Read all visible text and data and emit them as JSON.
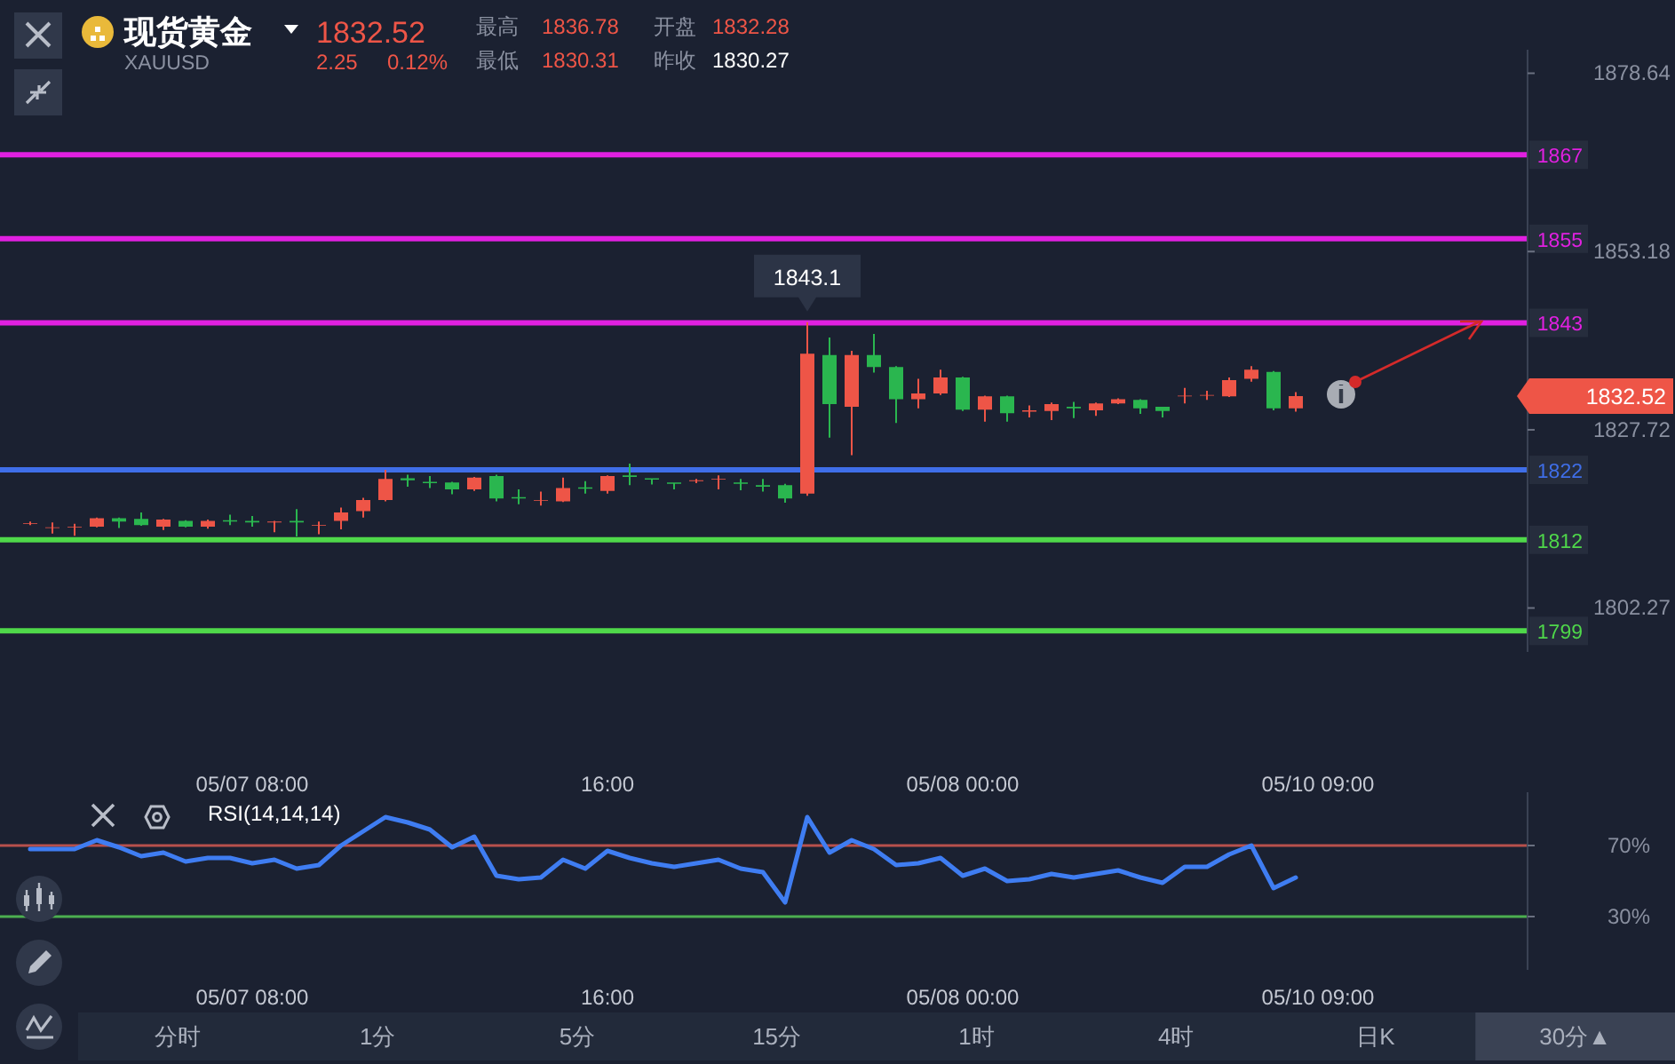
{
  "chart_data": [
    {
      "type": "candlestick",
      "title": "现货黄金",
      "subtitle": "XAUUSD",
      "categories": [
        null,
        null,
        null,
        null,
        null,
        null,
        null,
        null,
        null,
        null,
        "05/07 08:00",
        null,
        null,
        null,
        null,
        null,
        null,
        null,
        null,
        null,
        null,
        null,
        null,
        null,
        null,
        null,
        "16:00",
        null,
        null,
        null,
        null,
        null,
        null,
        null,
        null,
        null,
        null,
        null,
        null,
        null,
        null,
        null,
        "05/08 00:00",
        null,
        null,
        null,
        null,
        null,
        null,
        null,
        null,
        null,
        null,
        null,
        null,
        null,
        null,
        null,
        "05/10 09:00",
        null,
        null,
        null,
        null,
        null,
        null,
        null,
        null,
        null
      ],
      "ohlc": [
        [
          1814.3,
          1814.6,
          1814.1,
          1814.4
        ],
        [
          1813.7,
          1814.5,
          1812.9,
          1813.8
        ],
        [
          1813.8,
          1814.3,
          1812.6,
          1813.9
        ],
        [
          1813.9,
          1815.2,
          1813.8,
          1815.1
        ],
        [
          1815.1,
          1815.2,
          1813.7,
          1814.6
        ],
        [
          1815.0,
          1815.9,
          1814.0,
          1814.1
        ],
        [
          1813.9,
          1815.0,
          1813.4,
          1814.9
        ],
        [
          1814.7,
          1814.8,
          1813.8,
          1813.9
        ],
        [
          1813.9,
          1814.9,
          1813.6,
          1814.7
        ],
        [
          1814.8,
          1815.6,
          1814.1,
          1814.6
        ],
        [
          1814.7,
          1815.4,
          1813.9,
          1814.5
        ],
        [
          1814.5,
          1814.7,
          1813.1,
          1814.6
        ],
        [
          1814.7,
          1816.4,
          1812.5,
          1814.5
        ],
        [
          1814.0,
          1814.6,
          1812.8,
          1814.1
        ],
        [
          1814.7,
          1816.6,
          1813.5,
          1815.9
        ],
        [
          1816.1,
          1818.0,
          1815.2,
          1817.7
        ],
        [
          1817.7,
          1822.0,
          1817.5,
          1820.7
        ],
        [
          1820.8,
          1821.3,
          1819.6,
          1820.5
        ],
        [
          1820.3,
          1821.1,
          1819.4,
          1820.1
        ],
        [
          1820.2,
          1820.3,
          1818.5,
          1819.2
        ],
        [
          1819.2,
          1821.0,
          1819.0,
          1820.9
        ],
        [
          1821.1,
          1821.3,
          1817.5,
          1817.9
        ],
        [
          1818.1,
          1819.2,
          1817.1,
          1817.9
        ],
        [
          1817.6,
          1818.9,
          1816.9,
          1817.7
        ],
        [
          1817.5,
          1820.9,
          1817.4,
          1819.4
        ],
        [
          1819.5,
          1820.4,
          1818.6,
          1819.3
        ],
        [
          1819.0,
          1821.2,
          1818.6,
          1821.1
        ],
        [
          1821.2,
          1822.9,
          1819.8,
          1821.0
        ],
        [
          1820.8,
          1820.8,
          1819.9,
          1820.6
        ],
        [
          1820.2,
          1820.2,
          1819.2,
          1820.0
        ],
        [
          1820.4,
          1820.7,
          1820.1,
          1820.5
        ],
        [
          1820.6,
          1821.2,
          1819.2,
          1820.7
        ],
        [
          1820.2,
          1820.7,
          1819.1,
          1820.0
        ],
        [
          1819.8,
          1820.7,
          1818.9,
          1819.6
        ],
        [
          1819.8,
          1820.0,
          1817.3,
          1817.9
        ],
        [
          1818.6,
          1843.1,
          1818.3,
          1838.6
        ],
        [
          1838.4,
          1840.9,
          1826.6,
          1831.4
        ],
        [
          1831.0,
          1839.0,
          1824.1,
          1838.4
        ],
        [
          1838.4,
          1841.4,
          1835.9,
          1836.7
        ],
        [
          1836.7,
          1836.8,
          1828.7,
          1832.1
        ],
        [
          1832.1,
          1835.0,
          1830.8,
          1832.9
        ],
        [
          1832.9,
          1836.3,
          1832.7,
          1835.2
        ],
        [
          1835.2,
          1835.3,
          1830.4,
          1830.6
        ],
        [
          1830.6,
          1832.6,
          1828.9,
          1832.5
        ],
        [
          1832.5,
          1832.6,
          1828.9,
          1830.1
        ],
        [
          1830.3,
          1831.2,
          1829.5,
          1830.5
        ],
        [
          1830.4,
          1831.6,
          1829.1,
          1831.4
        ],
        [
          1831.0,
          1831.7,
          1829.4,
          1830.8
        ],
        [
          1830.5,
          1831.6,
          1829.7,
          1831.5
        ],
        [
          1831.5,
          1832.2,
          1831.4,
          1832.1
        ],
        [
          1832.0,
          1832.1,
          1830.0,
          1830.8
        ],
        [
          1831.0,
          1831.0,
          1829.5,
          1830.4
        ],
        [
          1832.5,
          1833.7,
          1831.5,
          1832.6
        ],
        [
          1832.6,
          1833.3,
          1832.0,
          1832.7
        ],
        [
          1832.5,
          1835.2,
          1832.4,
          1834.8
        ],
        [
          1835.0,
          1836.8,
          1834.6,
          1836.3
        ],
        [
          1836.0,
          1836.1,
          1830.5,
          1830.8
        ],
        [
          1830.8,
          1833.1,
          1830.3,
          1832.52
        ],
        null,
        null,
        null,
        null,
        null,
        null,
        null,
        null,
        null,
        null
      ],
      "ylim": [
        1796,
        1882
      ],
      "yticks": [
        1878.64,
        1853.18,
        1827.72,
        1802.27
      ],
      "ref_lines": [
        {
          "axis": "y",
          "value": 1867,
          "label": "1867",
          "color": "#e020e0"
        },
        {
          "axis": "y",
          "value": 1855,
          "label": "1855",
          "color": "#e020e0"
        },
        {
          "axis": "y",
          "value": 1843,
          "label": "1843",
          "color": "#e020e0"
        },
        {
          "axis": "y",
          "value": 1822,
          "label": "1822",
          "color": "#3f6ee8"
        },
        {
          "axis": "y",
          "value": 1812,
          "label": "1812",
          "color": "#4fd84a"
        },
        {
          "axis": "y",
          "value": 1799,
          "label": "1799",
          "color": "#4fd84a"
        }
      ],
      "annotations": [
        "1832.52",
        "2.25",
        "0.12%",
        "最高",
        "1836.78",
        "开盘",
        "1832.28",
        "最低",
        "1830.31",
        "昨收",
        "1830.27",
        "1832.52",
        {
          "text": "1843.1",
          "y": 1843.1
        }
      ]
    },
    {
      "type": "line",
      "title": "RSI(14,14,14)",
      "categories": [
        null,
        null,
        null,
        null,
        null,
        null,
        null,
        null,
        null,
        null,
        "05/07 08:00",
        null,
        null,
        null,
        null,
        null,
        null,
        null,
        null,
        null,
        null,
        null,
        null,
        null,
        null,
        null,
        "16:00",
        null,
        null,
        null,
        null,
        null,
        null,
        null,
        null,
        null,
        null,
        null,
        null,
        null,
        null,
        null,
        "05/08 00:00",
        null,
        null,
        null,
        null,
        null,
        null,
        null,
        null,
        null,
        null,
        null,
        null,
        null,
        null,
        null,
        "05/10 09:00",
        null,
        null,
        null,
        null,
        null,
        null,
        null,
        null,
        null
      ],
      "series": [
        {
          "color": "#3f7df2",
          "values": [
            68,
            68,
            68,
            73,
            69,
            64,
            66,
            61,
            63,
            63,
            60,
            62,
            57,
            59,
            70,
            78,
            86,
            83,
            79,
            69,
            75,
            53,
            51,
            52,
            62,
            57,
            67,
            63,
            60,
            58,
            60,
            62,
            57,
            55,
            38,
            86,
            66,
            73,
            68,
            59,
            60,
            63,
            53,
            57,
            50,
            51,
            54,
            52,
            54,
            56,
            52,
            49,
            58,
            58,
            65,
            70,
            46,
            52,
            null,
            null,
            null,
            null,
            null,
            null,
            null,
            null,
            null,
            null
          ]
        }
      ],
      "ylim": [
        0,
        100
      ],
      "yticks": [
        {
          "value": 70,
          "label": "70%"
        },
        {
          "value": 30,
          "label": "30%"
        }
      ],
      "ref_lines": [
        {
          "axis": "y",
          "value": 70,
          "color": "#b8504c"
        },
        {
          "axis": "y",
          "value": 30,
          "color": "#4caf50"
        }
      ],
      "annotations": [
        "分时",
        "1分",
        "5分",
        "15分",
        "1时",
        "4时",
        "日K",
        "30分▲"
      ]
    }
  ]
}
